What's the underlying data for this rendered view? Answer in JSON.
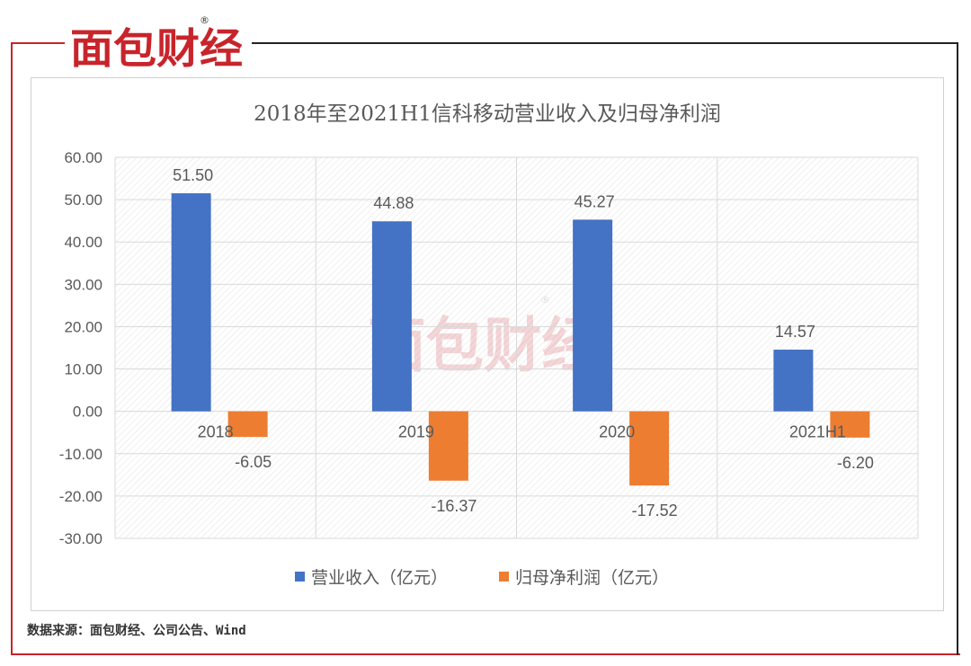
{
  "brand": {
    "name": "面包财经",
    "registered_mark": "®",
    "accent": "#c8242b",
    "dark": "#2b2b2b"
  },
  "source_note": "数据来源：面包财经、公司公告、Wind",
  "colors": {
    "revenue": "#4472c4",
    "profit": "#ed7d31",
    "grid": "#d9d9d9",
    "text": "#595959"
  },
  "chart_data": {
    "type": "bar",
    "title": "2018年至2021H1信科移动营业收入及归母净利润",
    "categories": [
      "2018",
      "2019",
      "2020",
      "2021H1"
    ],
    "series": [
      {
        "name": "营业收入（亿元）",
        "values": [
          51.5,
          44.88,
          45.27,
          14.57
        ]
      },
      {
        "name": "归母净利润（亿元）",
        "values": [
          -6.05,
          -16.37,
          -17.52,
          -6.2
        ]
      }
    ],
    "data_labels": [
      [
        "51.50",
        "44.88",
        "45.27",
        "14.57"
      ],
      [
        "-6.05",
        "-16.37",
        "-17.52",
        "-6.20"
      ]
    ],
    "y_ticks": [
      "60.00",
      "50.00",
      "40.00",
      "30.00",
      "20.00",
      "10.00",
      "0.00",
      "-10.00",
      "-20.00",
      "-30.00"
    ],
    "ylim": [
      -30,
      60
    ],
    "y_step": 10,
    "grid": true,
    "legend": "bottom"
  }
}
